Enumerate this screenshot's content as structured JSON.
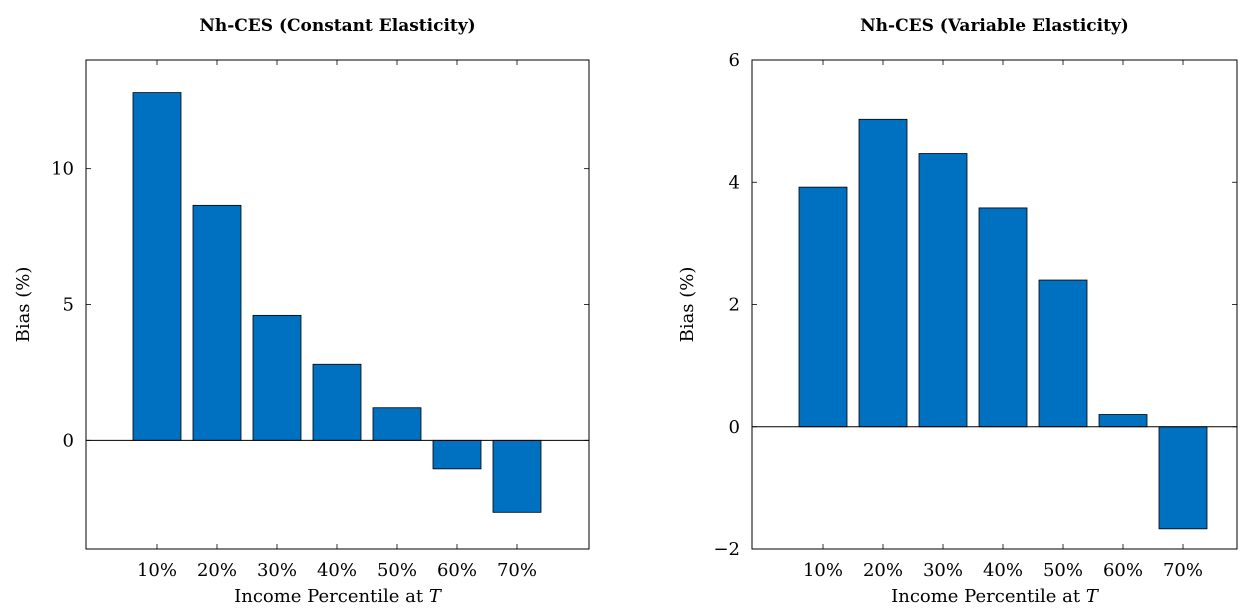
{
  "chart_data": [
    {
      "type": "bar",
      "title": "Nh-CES (Constant Elasticity)",
      "xlabel": "Income Percentile at T",
      "xlabel_italic_suffix": "T",
      "ylabel": "Bias (%)",
      "categories": [
        "10%",
        "20%",
        "30%",
        "40%",
        "50%",
        "60%",
        "70%"
      ],
      "values": [
        12.8,
        8.65,
        4.6,
        2.8,
        1.2,
        -1.05,
        -2.65
      ],
      "ylim": [
        -4,
        14
      ],
      "yticks": [
        0,
        5,
        10
      ],
      "grid": false,
      "bar_color": "#0070C0"
    },
    {
      "type": "bar",
      "title": "Nh-CES (Variable Elasticity)",
      "xlabel": "Income Percentile at T",
      "xlabel_italic_suffix": "T",
      "ylabel": "Bias (%)",
      "categories": [
        "10%",
        "20%",
        "30%",
        "40%",
        "50%",
        "60%",
        "70%"
      ],
      "values": [
        3.92,
        5.03,
        4.47,
        3.58,
        2.4,
        0.2,
        -1.67
      ],
      "ylim": [
        -2,
        6
      ],
      "yticks": [
        -2,
        0,
        2,
        4,
        6
      ],
      "ytick_labels": [
        "−2",
        "0",
        "2",
        "4",
        "6"
      ],
      "grid": false,
      "bar_color": "#0070C0"
    }
  ]
}
